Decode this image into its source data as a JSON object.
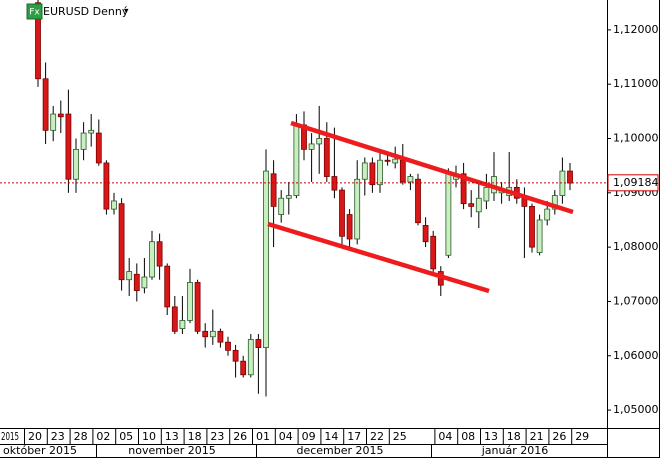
{
  "chart_data": {
    "type": "candlestick",
    "title": "EURUSD Denný",
    "menu_glyph": "▾",
    "icon_label": "Fx",
    "clipped_tick": "2015",
    "months": [
      "október 2015",
      "november 2015",
      "december 2015",
      "január 2016"
    ],
    "categories": [
      "20",
      null,
      null,
      "23",
      null,
      null,
      "28",
      null,
      null,
      "02",
      null,
      null,
      "05",
      null,
      null,
      "10",
      null,
      null,
      "13",
      null,
      null,
      "18",
      null,
      null,
      "23",
      null,
      null,
      "26",
      null,
      null,
      "01",
      null,
      null,
      "04",
      null,
      null,
      "09",
      null,
      null,
      "14",
      null,
      null,
      "17",
      null,
      null,
      "22",
      null,
      null,
      "25",
      null,
      null,
      null,
      null,
      null,
      "04",
      null,
      null,
      "08",
      null,
      null,
      "13",
      null,
      null,
      "18",
      null,
      null,
      "21",
      null,
      null,
      "26",
      null,
      null,
      "29"
    ],
    "open": [
      1.125,
      1.111,
      1.1015,
      1.1045,
      1.1045,
      1.0925,
      1.098,
      1.101,
      1.101,
      1.0955,
      1.087,
      1.088,
      1.074,
      1.075,
      1.0725,
      1.0745,
      1.081,
      1.0765,
      1.069,
      1.065,
      1.0665,
      1.0735,
      1.0645,
      1.0635,
      1.0645,
      1.0625,
      1.061,
      1.059,
      1.0565,
      1.063,
      1.0615,
      1.0935,
      1.086,
      1.089,
      1.0895,
      1.1025,
      1.098,
      1.099,
      1.1,
      1.093,
      1.0905,
      1.086,
      1.0815,
      1.0925,
      1.0955,
      1.0915,
      1.096,
      1.0955,
      1.096,
      1.092,
      1.0925,
      1.084,
      1.082,
      1.0755,
      1.0785,
      1.0925,
      1.0935,
      1.088,
      1.0865,
      1.0885,
      1.09,
      1.09,
      1.0895,
      1.091,
      1.089,
      1.0875,
      1.079,
      1.085,
      1.087,
      1.0895,
      1.094,
      null,
      null
    ],
    "high": [
      1.1255,
      1.114,
      1.106,
      1.107,
      1.109,
      1.1,
      1.103,
      1.1045,
      1.1035,
      1.096,
      1.09,
      1.089,
      1.078,
      1.077,
      1.078,
      1.083,
      1.0825,
      1.077,
      1.071,
      1.071,
      1.076,
      1.074,
      1.066,
      1.0685,
      1.065,
      1.0635,
      1.062,
      1.06,
      1.064,
      1.064,
      1.098,
      1.096,
      1.0905,
      1.092,
      1.1045,
      1.105,
      1.101,
      1.106,
      1.103,
      1.102,
      1.091,
      1.087,
      1.096,
      1.0965,
      1.0965,
      1.0975,
      1.097,
      1.0985,
      1.099,
      1.0935,
      1.0935,
      1.0855,
      1.083,
      1.0765,
      1.0945,
      1.095,
      1.0955,
      1.0905,
      1.092,
      1.0935,
      1.0975,
      1.092,
      1.0975,
      1.0925,
      1.091,
      1.088,
      1.086,
      1.0885,
      1.0905,
      1.0965,
      1.0955,
      null,
      null
    ],
    "low": [
      1.1095,
      1.099,
      1.0995,
      1.101,
      1.09,
      1.09,
      1.096,
      1.0985,
      1.095,
      1.086,
      1.086,
      1.072,
      1.071,
      1.07,
      1.0715,
      1.074,
      1.074,
      1.0675,
      1.064,
      1.064,
      1.066,
      1.064,
      1.0615,
      1.062,
      1.0615,
      1.06,
      1.056,
      1.056,
      1.056,
      1.053,
      1.0525,
      1.08,
      1.0845,
      1.086,
      1.089,
      1.096,
      1.092,
      1.0935,
      1.092,
      1.089,
      1.0805,
      1.08,
      1.0805,
      1.0895,
      1.09,
      1.09,
      1.095,
      1.0945,
      1.0915,
      1.0905,
      1.084,
      1.08,
      1.075,
      1.071,
      1.078,
      1.091,
      1.087,
      1.0855,
      1.0835,
      1.087,
      1.0885,
      1.088,
      1.0885,
      1.088,
      1.078,
      1.079,
      1.0785,
      1.084,
      1.086,
      1.088,
      1.0905,
      null,
      null
    ],
    "close": [
      1.111,
      1.1015,
      1.1045,
      1.104,
      1.0925,
      1.098,
      1.101,
      1.1015,
      1.0955,
      1.087,
      1.0885,
      1.074,
      1.0755,
      1.072,
      1.0745,
      1.081,
      1.0765,
      1.069,
      1.0645,
      1.0665,
      1.0735,
      1.0645,
      1.0635,
      1.0645,
      1.0625,
      1.061,
      1.059,
      1.0565,
      1.063,
      1.0615,
      1.094,
      1.0875,
      1.089,
      1.0895,
      1.1025,
      1.098,
      1.099,
      1.1,
      1.093,
      1.0905,
      1.082,
      1.0815,
      1.0925,
      1.0955,
      1.0915,
      1.096,
      1.0958,
      1.0962,
      1.092,
      1.093,
      1.0845,
      1.081,
      1.076,
      1.073,
      1.0935,
      1.0935,
      1.088,
      1.0875,
      1.089,
      1.091,
      1.093,
      1.0905,
      1.091,
      1.089,
      1.0875,
      1.08,
      1.085,
      1.087,
      1.0895,
      1.094,
      1.0918,
      null,
      null
    ],
    "up_color": "#c9efc1",
    "down_color": "#d81818",
    "last_price": {
      "value": 1.09184,
      "label": "1,09184"
    },
    "ylim": [
      1.0467,
      1.1255
    ],
    "yticks": [
      {
        "value": 1.05,
        "label": "1,05000"
      },
      {
        "value": 1.06,
        "label": "1,06000"
      },
      {
        "value": 1.07,
        "label": "1,07000"
      },
      {
        "value": 1.08,
        "label": "1,08000"
      },
      {
        "value": 1.09,
        "label": "1,09000"
      },
      {
        "value": 1.1,
        "label": "1,10000"
      },
      {
        "value": 1.11,
        "label": "1,11000"
      },
      {
        "value": 1.12,
        "label": "1,12000"
      }
    ]
  }
}
